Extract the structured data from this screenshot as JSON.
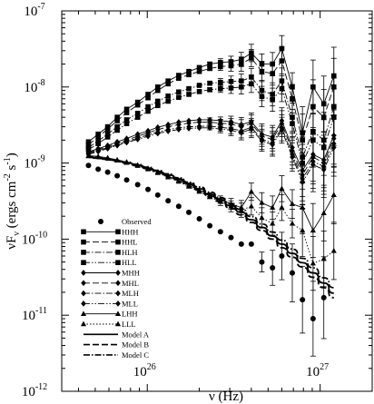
{
  "chart_data": {
    "type": "line",
    "title": "",
    "xlabel": "ν (Hz)",
    "ylabel": "νF_ν (ergs cm^-2 s^-1)",
    "xscale": "log",
    "yscale": "log",
    "xlim": [
      3.2e+25,
      2e+27
    ],
    "ylim": [
      1e-12,
      1e-07
    ],
    "x_ticks": [
      {
        "value": 1e+26,
        "label": "10",
        "exp": "26"
      },
      {
        "value": 1e+27,
        "label": "10",
        "exp": "27"
      }
    ],
    "y_ticks": [
      {
        "value": 1e-12,
        "label": "10",
        "exp": "-12"
      },
      {
        "value": 1e-11,
        "label": "10",
        "exp": "-11"
      },
      {
        "value": 1e-10,
        "label": "10",
        "exp": "-10"
      },
      {
        "value": 1e-09,
        "label": "10",
        "exp": "-9"
      },
      {
        "value": 1e-08,
        "label": "10",
        "exp": "-8"
      },
      {
        "value": 1e-07,
        "label": "10",
        "exp": "-7"
      }
    ],
    "x": [
      4.57e+25,
      5.2e+25,
      5.9e+25,
      6.7e+25,
      7.6e+25,
      8.8e+25,
      1.01e+26,
      1.15e+26,
      1.32e+26,
      1.52e+26,
      1.74e+26,
      2e+26,
      2.3e+26,
      2.65e+26,
      3.05e+26,
      3.5e+26,
      4e+26,
      4.6e+26,
      5.3e+26,
      6e+26,
      6.9e+26,
      7.9e+26,
      9.1e+26,
      1.05e+27,
      1.2e+27
    ],
    "legend_position": "lower-left",
    "series": [
      {
        "name": "Observed",
        "marker": "circle",
        "line": "none",
        "values": [
          9.3e-10,
          8.3e-10,
          7.6e-10,
          6.8e-10,
          6e-10,
          5.2e-10,
          4.5e-10,
          3.8e-10,
          3.2e-10,
          2.7e-10,
          2.25e-10,
          1.85e-10,
          1.5e-10,
          1.25e-10,
          1.05e-10,
          8.6e-11,
          8.6e-11,
          5e-11,
          4.2e-11,
          6e-11,
          3.6e-11,
          1.6e-11,
          9e-12,
          1.7e-11,
          null
        ]
      },
      {
        "name": "HHH",
        "marker": "square",
        "line": "solid",
        "values": [
          1.9e-09,
          2.4e-09,
          3e-09,
          4e-09,
          5.1e-09,
          6.3e-09,
          8e-09,
          1e-08,
          1.2e-08,
          1.42e-08,
          1.6e-08,
          1.8e-08,
          2e-08,
          2.1e-08,
          2.15e-08,
          2.3e-08,
          2.8e-08,
          2e-08,
          2e-08,
          3.2e-08,
          1e-08,
          2.5e-09,
          1e-08,
          6e-09,
          1.4e-08
        ]
      },
      {
        "name": "HHL",
        "marker": "square",
        "line": "dashed",
        "values": [
          1.75e-09,
          2.2e-09,
          2.8e-09,
          3.6e-09,
          4.6e-09,
          5.8e-09,
          7.2e-09,
          9e-09,
          1.1e-08,
          1.3e-08,
          1.45e-08,
          1.6e-08,
          1.75e-08,
          1.85e-08,
          1.9e-08,
          2e-08,
          2.4e-08,
          1.6e-08,
          1.5e-08,
          2.2e-08,
          7e-09,
          2e-09,
          5.5e-09,
          4e-09,
          1e-08
        ]
      },
      {
        "name": "HLH",
        "marker": "square",
        "line": "dashdot",
        "values": [
          1.6e-09,
          1.95e-09,
          2.4e-09,
          3e-09,
          3.7e-09,
          4.5e-09,
          5.5e-09,
          6.5e-09,
          7.6e-09,
          8.6e-09,
          9.5e-09,
          1.05e-08,
          1.12e-08,
          1.15e-08,
          1.18e-08,
          1.2e-08,
          1.35e-08,
          9e-09,
          8e-09,
          1.2e-08,
          4e-09,
          1.2e-09,
          2.6e-09,
          2e-09,
          5.5e-09
        ]
      },
      {
        "name": "HLL",
        "marker": "square",
        "line": "dashdotdot",
        "values": [
          1.5e-09,
          1.8e-09,
          2.2e-09,
          2.7e-09,
          3.3e-09,
          4e-09,
          4.8e-09,
          5.7e-09,
          6.5e-09,
          7.3e-09,
          8e-09,
          8.7e-09,
          9.2e-09,
          9.5e-09,
          9.7e-09,
          1e-08,
          1.1e-08,
          7.5e-09,
          6.8e-09,
          9.5e-09,
          3.3e-09,
          1e-09,
          2e-09,
          1.6e-09,
          4e-09
        ]
      },
      {
        "name": "MHH",
        "marker": "diamond",
        "line": "solid",
        "values": [
          1.4e-09,
          1.55e-09,
          1.7e-09,
          1.9e-09,
          2.1e-09,
          2.4e-09,
          2.65e-09,
          2.95e-09,
          3.2e-09,
          3.45e-09,
          3.6e-09,
          3.7e-09,
          3.7e-09,
          3.6e-09,
          3.5e-09,
          3.2e-09,
          3.5e-09,
          2.4e-09,
          2.2e-09,
          3.6e-09,
          1.6e-09,
          8e-10,
          1.3e-09,
          1.1e-09,
          2.3e-09
        ]
      },
      {
        "name": "MHL",
        "marker": "diamond",
        "line": "dashed",
        "values": [
          1.37e-09,
          1.5e-09,
          1.65e-09,
          1.82e-09,
          2e-09,
          2.25e-09,
          2.5e-09,
          2.75e-09,
          3e-09,
          3.2e-09,
          3.35e-09,
          3.45e-09,
          3.45e-09,
          3.35e-09,
          3.25e-09,
          3e-09,
          3.3e-09,
          2.25e-09,
          2.05e-09,
          3.3e-09,
          1.45e-09,
          7e-10,
          1.2e-09,
          1e-09,
          2.1e-09
        ]
      },
      {
        "name": "MLH",
        "marker": "diamond",
        "line": "dashdot",
        "values": [
          1.33e-09,
          1.45e-09,
          1.6e-09,
          1.75e-09,
          1.92e-09,
          2.12e-09,
          2.35e-09,
          2.55e-09,
          2.75e-09,
          2.9e-09,
          3e-09,
          3.05e-09,
          3.05e-09,
          2.95e-09,
          2.85e-09,
          2.65e-09,
          2.95e-09,
          2.05e-09,
          1.85e-09,
          2.9e-09,
          1.3e-09,
          6.2e-10,
          1.05e-09,
          9e-10,
          1.8e-09
        ]
      },
      {
        "name": "MLL",
        "marker": "diamond",
        "line": "dashdotdot",
        "values": [
          1.3e-09,
          1.42e-09,
          1.55e-09,
          1.7e-09,
          1.86e-09,
          2.05e-09,
          2.25e-09,
          2.45e-09,
          2.62e-09,
          2.76e-09,
          2.85e-09,
          2.9e-09,
          2.9e-09,
          2.8e-09,
          2.7e-09,
          2.5e-09,
          2.8e-09,
          1.95e-09,
          1.75e-09,
          2.7e-09,
          1.2e-09,
          5.6e-10,
          9.5e-10,
          8.2e-10,
          1.6e-09
        ]
      },
      {
        "name": "LHH",
        "marker": "triangle",
        "line": "solid",
        "values": [
          1.25e-09,
          1.22e-09,
          1.17e-09,
          1.1e-09,
          1.03e-09,
          9.4e-10,
          8.5e-10,
          7.6e-10,
          6.7e-10,
          5.9e-10,
          5.1e-10,
          4.4e-10,
          3.8e-10,
          3.3e-10,
          2.9e-10,
          2.6e-10,
          4.2e-10,
          3e-10,
          2.6e-10,
          4.6e-10,
          2.9e-10,
          2.6e-10,
          1.3e-10,
          2.2e-10,
          3.8e-10
        ]
      },
      {
        "name": "LLL",
        "marker": "triangle",
        "line": "dotted",
        "values": [
          1.23e-09,
          1.2e-09,
          1.15e-09,
          1.08e-09,
          1.01e-09,
          9.2e-10,
          8.3e-10,
          7.4e-10,
          6.5e-10,
          5.7e-10,
          4.9e-10,
          4.2e-10,
          3.6e-10,
          3.1e-10,
          2.7e-10,
          2.4e-10,
          2.7e-10,
          1.9e-10,
          1.6e-10,
          2.6e-10,
          1.6e-10,
          1.3e-10,
          4.8e-11,
          5.5e-11,
          7e-11
        ]
      },
      {
        "name": "Model A",
        "marker": "none",
        "line": "solid",
        "values": [
          1.2e-09,
          1.16e-09,
          1.12e-09,
          1.07e-09,
          1.01e-09,
          9.4e-10,
          8.6e-10,
          7.8e-10,
          7e-10,
          6.2e-10,
          5.4e-10,
          4.6e-10,
          3.9e-10,
          3.3e-10,
          2.75e-10,
          2.25e-10,
          1.8e-10,
          1.43e-10,
          1.1e-10,
          8.6e-11,
          6.5e-11,
          4.9e-11,
          3.6e-11,
          2.65e-11,
          1.95e-11
        ]
      },
      {
        "name": "Model B",
        "marker": "none",
        "line": "dashed",
        "values": [
          1.19e-09,
          1.15e-09,
          1.1e-09,
          1.05e-09,
          9.9e-10,
          9.2e-10,
          8.4e-10,
          7.6e-10,
          6.8e-10,
          6e-10,
          5.2e-10,
          4.4e-10,
          3.7e-10,
          3.1e-10,
          2.55e-10,
          2.08e-10,
          1.66e-10,
          1.3e-10,
          1e-10,
          7.7e-11,
          5.8e-11,
          4.3e-11,
          3.15e-11,
          2.3e-11,
          1.7e-11
        ]
      },
      {
        "name": "Model C",
        "marker": "none",
        "line": "dashdot",
        "values": [
          1.21e-09,
          1.17e-09,
          1.13e-09,
          1.08e-09,
          1.03e-09,
          9.6e-10,
          8.8e-10,
          8e-10,
          7.2e-10,
          6.4e-10,
          5.6e-10,
          4.85e-10,
          4.15e-10,
          3.5e-10,
          2.95e-10,
          2.45e-10,
          1.98e-10,
          1.58e-10,
          1.24e-10,
          9.7e-11,
          7.4e-11,
          5.6e-11,
          4.2e-11,
          3.1e-11,
          2.3e-11
        ]
      }
    ]
  }
}
